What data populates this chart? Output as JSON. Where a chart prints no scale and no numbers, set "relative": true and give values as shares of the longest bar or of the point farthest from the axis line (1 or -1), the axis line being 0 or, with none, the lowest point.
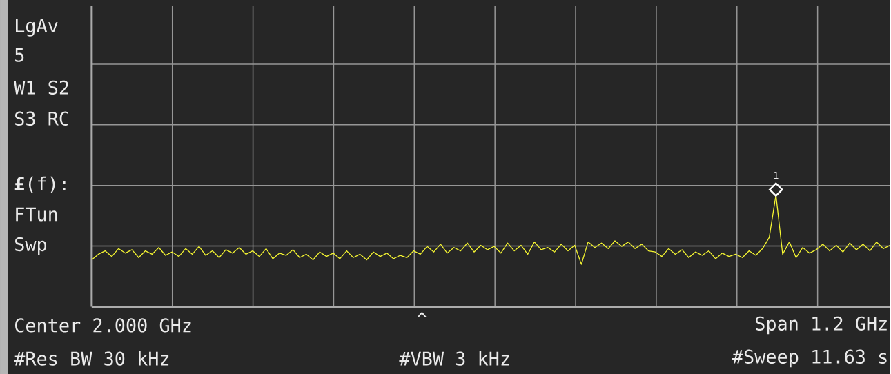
{
  "chart_data": {
    "type": "line",
    "relative": true,
    "grid": true,
    "legend": false,
    "marker": "none",
    "line_style": "solid",
    "categories": [
      null,
      null,
      null,
      null,
      null,
      null,
      null,
      null,
      null,
      null,
      null,
      null,
      null,
      null,
      null,
      null,
      null,
      null,
      null,
      null,
      null,
      null,
      null,
      null,
      null,
      null,
      null,
      null,
      null,
      null,
      null,
      null,
      null,
      null,
      null,
      null,
      null,
      null,
      null,
      null,
      null,
      null,
      null,
      null,
      null,
      null,
      null,
      null,
      null,
      null,
      null,
      null,
      null,
      null,
      null,
      null,
      null,
      null,
      null,
      null,
      null,
      null,
      null,
      null,
      null,
      null,
      null,
      null,
      null,
      null,
      null,
      null,
      null,
      null,
      null,
      null,
      null,
      null,
      null,
      null,
      null,
      null,
      null,
      null,
      null,
      null,
      null,
      null,
      null,
      null,
      null,
      null,
      null,
      null,
      null,
      null,
      null,
      null,
      null,
      null,
      null,
      null,
      null,
      null,
      null,
      null,
      null,
      null,
      null,
      null,
      null,
      null,
      null,
      null,
      null,
      null,
      null,
      null,
      null,
      null
    ],
    "series": [
      {
        "color": "#f5f532",
        "values": [
          0.42,
          0.47,
          0.5,
          0.45,
          0.52,
          0.48,
          0.51,
          0.44,
          0.5,
          0.47,
          0.53,
          0.46,
          0.49,
          0.45,
          0.52,
          0.47,
          0.54,
          0.46,
          0.5,
          0.44,
          0.51,
          0.48,
          0.53,
          0.47,
          0.5,
          0.45,
          0.52,
          0.43,
          0.48,
          0.46,
          0.51,
          0.44,
          0.47,
          0.42,
          0.49,
          0.45,
          0.48,
          0.43,
          0.5,
          0.44,
          0.47,
          0.42,
          0.49,
          0.45,
          0.48,
          0.43,
          0.46,
          0.44,
          0.5,
          0.47,
          0.54,
          0.49,
          0.56,
          0.48,
          0.53,
          0.5,
          0.57,
          0.49,
          0.55,
          0.51,
          0.54,
          0.48,
          0.57,
          0.5,
          0.55,
          0.47,
          0.58,
          0.51,
          0.53,
          0.49,
          0.56,
          0.5,
          0.55,
          0.38,
          0.58,
          0.53,
          0.57,
          0.52,
          0.59,
          0.54,
          0.58,
          0.52,
          0.56,
          0.5,
          0.49,
          0.45,
          0.52,
          0.47,
          0.51,
          0.44,
          0.49,
          0.46,
          0.5,
          0.43,
          0.48,
          0.45,
          0.47,
          0.44,
          0.5,
          0.46,
          0.52,
          0.62,
          1,
          0.47,
          0.58,
          0.44,
          0.53,
          0.48,
          0.51,
          0.56,
          0.5,
          0.55,
          0.49,
          0.57,
          0.51,
          0.56,
          0.5,
          0.58,
          0.52,
          0.55
        ]
      }
    ],
    "annotations": [
      "LgAv",
      "5",
      "W1 S2",
      "S3 RC",
      "**£**(f):",
      "FTun",
      "Swp",
      "Center 2.000 GHz",
      "^",
      "Span 1.2 GHz",
      "#Res BW 30 kHz",
      "#VBW 3 kHz",
      "#Sweep 11.63 s",
      {
        "text": "1",
        "y": 1
      }
    ]
  }
}
